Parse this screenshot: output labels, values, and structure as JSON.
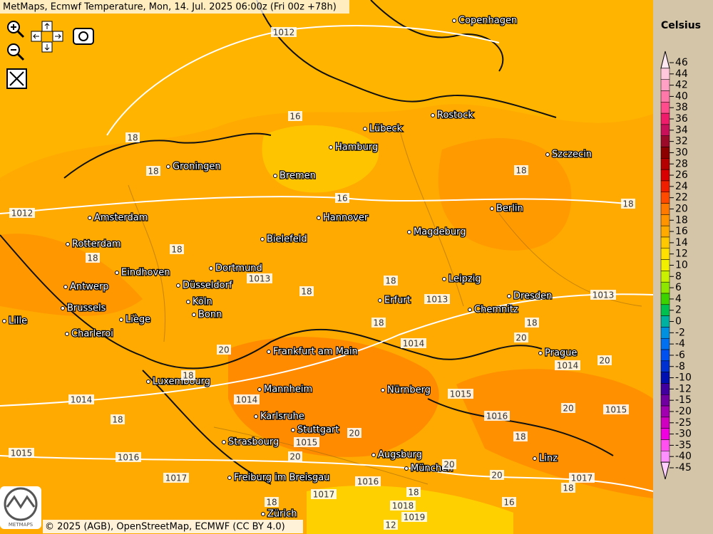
{
  "header": {
    "title": "MetMaps, Ecmwf Temperature, Mon, 14. Jul. 2025 06:00z (Fri 00z +78h)"
  },
  "map": {
    "cities": [
      "Copenhagen",
      "Rostock",
      "Lübeck",
      "Hamburg",
      "Szczecin",
      "Groningen",
      "Bremen",
      "Berlin",
      "Amsterdam",
      "Hannover",
      "Magdeburg",
      "Bielefeld",
      "Rotterdam",
      "Dortmund",
      "Eindhoven",
      "Leipzig",
      "Antwerp",
      "Düsseldorf",
      "Dresden",
      "Erfurt",
      "Brussels",
      "Köln",
      "Chemnitz",
      "Bonn",
      "Lille",
      "Liège",
      "Charleroi",
      "Frankfurt am Main",
      "Prague",
      "Luxembourg",
      "Mannheim",
      "Nürnberg",
      "Karlsruhe",
      "Stuttgart",
      "Strasbourg",
      "Augsburg",
      "Linz",
      "München",
      "Freiburg im Breisgau",
      "Zürich"
    ],
    "contour_labels": [
      1012,
      1012,
      16,
      18,
      18,
      16,
      18,
      18,
      18,
      18,
      18,
      18,
      1013,
      1013,
      1013,
      18,
      18,
      20,
      1014,
      20,
      20,
      1014,
      18,
      1014,
      1015,
      1014,
      18,
      20,
      1015,
      1016,
      18,
      20,
      1015,
      20,
      1015,
      1016,
      20,
      20,
      1017,
      1017,
      18,
      1016,
      18,
      1018,
      1019,
      12,
      16,
      1017,
      18
    ]
  },
  "legend": {
    "unit": "Celsius",
    "levels": [
      {
        "value": 46,
        "color": "#ffe8f2"
      },
      {
        "value": 44,
        "color": "#ffc8dc"
      },
      {
        "value": 42,
        "color": "#ffa0c4"
      },
      {
        "value": 40,
        "color": "#ff78aa"
      },
      {
        "value": 38,
        "color": "#ff4c8c"
      },
      {
        "value": 36,
        "color": "#ee1c6a"
      },
      {
        "value": 34,
        "color": "#c8105a"
      },
      {
        "value": 32,
        "color": "#9c0a2a"
      },
      {
        "value": 30,
        "color": "#8c0000"
      },
      {
        "value": 28,
        "color": "#b40000"
      },
      {
        "value": 26,
        "color": "#d80000"
      },
      {
        "value": 24,
        "color": "#f01e00"
      },
      {
        "value": 22,
        "color": "#ff4a00"
      },
      {
        "value": 20,
        "color": "#ff7800"
      },
      {
        "value": 18,
        "color": "#ff9400"
      },
      {
        "value": 16,
        "color": "#ffaa00"
      },
      {
        "value": 14,
        "color": "#ffc800"
      },
      {
        "value": 12,
        "color": "#ffe000"
      },
      {
        "value": 10,
        "color": "#f0f000"
      },
      {
        "value": 8,
        "color": "#c8f000"
      },
      {
        "value": 6,
        "color": "#8ce600"
      },
      {
        "value": 4,
        "color": "#3cd200"
      },
      {
        "value": 2,
        "color": "#00c050"
      },
      {
        "value": 0,
        "color": "#00b0a0"
      },
      {
        "value": -2,
        "color": "#0090e0"
      },
      {
        "value": -4,
        "color": "#0070f0"
      },
      {
        "value": -6,
        "color": "#0050f0"
      },
      {
        "value": -8,
        "color": "#0030d0"
      },
      {
        "value": -10,
        "color": "#0010b0"
      },
      {
        "value": -12,
        "color": "#4000a0"
      },
      {
        "value": -15,
        "color": "#7000a0"
      },
      {
        "value": -20,
        "color": "#a000b0"
      },
      {
        "value": -25,
        "color": "#d000c0"
      },
      {
        "value": -30,
        "color": "#f000e0"
      },
      {
        "value": -35,
        "color": "#ff50f0"
      },
      {
        "value": -40,
        "color": "#ff90ff"
      },
      {
        "value": -45,
        "color": "#ffd0ff"
      }
    ]
  },
  "footer": {
    "credit": "© 2025 (AGB), OpenStreetMap, ECMWF (CC BY 4.0)",
    "logo": "METMAPS"
  }
}
